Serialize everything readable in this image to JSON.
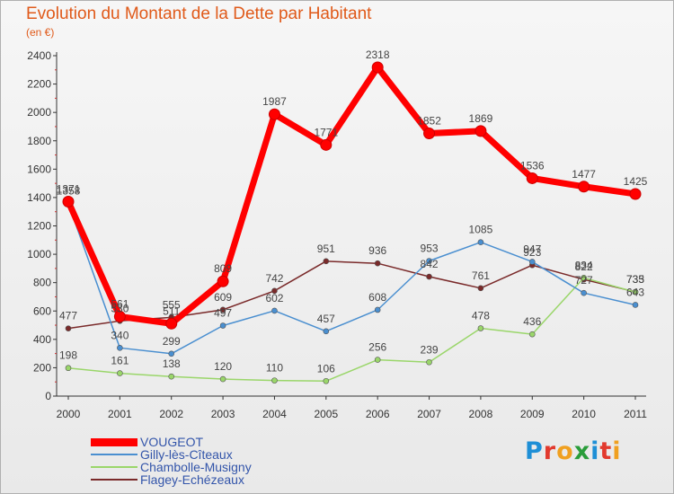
{
  "title": "Evolution du Montant de la Dette par Habitant",
  "subtitle": "(en €)",
  "logo": {
    "letters": [
      {
        "char": "P",
        "color": "#1e8fd6"
      },
      {
        "char": "r",
        "color": "#e23a2e"
      },
      {
        "char": "o",
        "color": "#f0a020"
      },
      {
        "char": "x",
        "color": "#2a9d3a"
      },
      {
        "char": "i",
        "color": "#1e8fd6"
      },
      {
        "char": "t",
        "color": "#e23a2e"
      },
      {
        "char": "i",
        "color": "#f0a020"
      }
    ]
  },
  "chart_data": {
    "type": "line",
    "title": "Evolution du Montant de la Dette par Habitant",
    "subtitle": "(en €)",
    "xlabel": "",
    "ylabel": "",
    "categories": [
      "2000",
      "2001",
      "2002",
      "2003",
      "2004",
      "2005",
      "2006",
      "2007",
      "2008",
      "2009",
      "2010",
      "2011"
    ],
    "ylim": [
      0,
      2400
    ],
    "yticks": [
      0,
      200,
      400,
      600,
      800,
      1000,
      1200,
      1400,
      1600,
      1800,
      2000,
      2200,
      2400
    ],
    "grid": false,
    "legend_position": "bottom-left",
    "series": [
      {
        "name": "VOUGEOT",
        "color": "#ff0000",
        "values": [
          1371,
          561,
          511,
          809,
          1987,
          1771,
          2318,
          1852,
          1869,
          1536,
          1477,
          1425
        ],
        "labels": [
          "1371",
          "561",
          "511",
          "809",
          "1987",
          "1771",
          "2318",
          "1852",
          "1869",
          "1536",
          "1477",
          "1425"
        ]
      },
      {
        "name": "Gilly-lès-Cîteaux",
        "color": "#4a8fd0",
        "values": [
          1358,
          340,
          299,
          497,
          602,
          457,
          608,
          953,
          1085,
          947,
          727,
          643
        ],
        "labels": [
          "1358",
          "340",
          "299",
          "497",
          "602",
          "457",
          "608",
          "953",
          "1085",
          "947",
          "727",
          "643"
        ]
      },
      {
        "name": "Chambolle-Musigny",
        "color": "#9ad66a",
        "values": [
          198,
          161,
          138,
          120,
          110,
          106,
          256,
          239,
          478,
          436,
          834,
          733
        ],
        "labels": [
          "198",
          "161",
          "138",
          "120",
          "110",
          "106",
          "256",
          "239",
          "478",
          "436",
          "834",
          "733"
        ]
      },
      {
        "name": "Flagey-Echézeaux",
        "color": "#7a2a2a",
        "values": [
          477,
          530,
          555,
          609,
          742,
          951,
          936,
          842,
          761,
          923,
          822,
          735
        ],
        "labels": [
          "477",
          "530",
          "555",
          "609",
          "742",
          "951",
          "936",
          "842",
          "761",
          "923",
          "822",
          "735"
        ]
      }
    ]
  }
}
